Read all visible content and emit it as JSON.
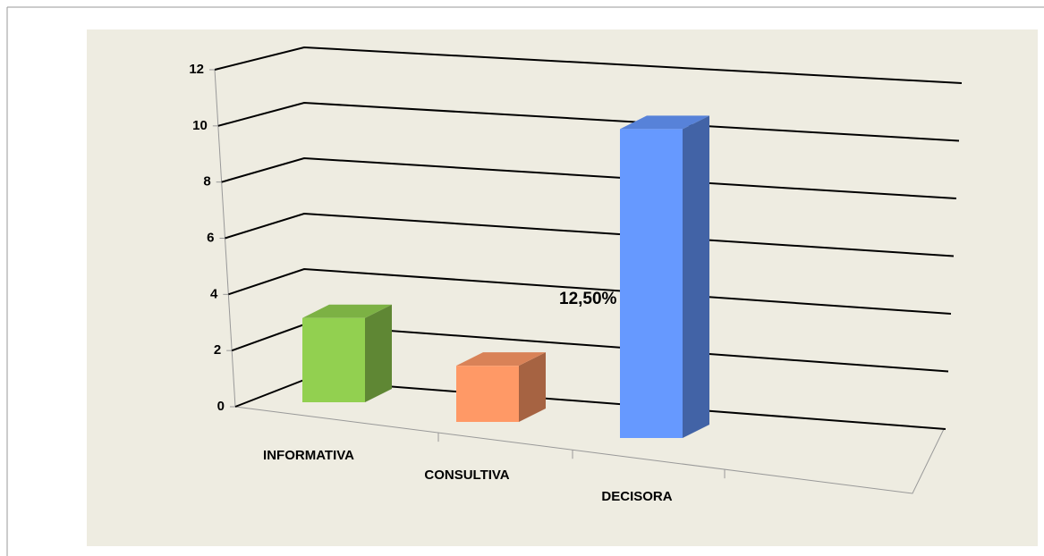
{
  "chart_data": {
    "type": "bar3d",
    "categories": [
      "INFORMATIVA",
      "CONSULTIVA",
      "DECISORA"
    ],
    "values": [
      3,
      2,
      11
    ],
    "colors": [
      "#92d050",
      "#ff9966",
      "#6699ff"
    ],
    "annotation": "12,50%",
    "ylim": [
      0,
      12
    ],
    "yticks": [
      0,
      2,
      4,
      6,
      8,
      10,
      12
    ],
    "grid": true
  }
}
